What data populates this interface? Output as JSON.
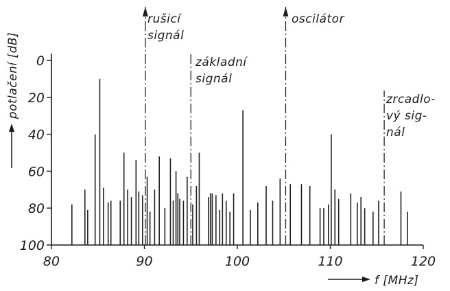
{
  "chart_data": {
    "type": "bar",
    "ylabel": "potlačení [dB]",
    "xlabel": "f [MHz]",
    "xlim": [
      80,
      120
    ],
    "ylim": [
      0,
      100
    ],
    "y_inverted": true,
    "x_ticks": [
      "80",
      "90",
      "100",
      "110",
      "120"
    ],
    "y_ticks": [
      "0",
      "20",
      "40",
      "60",
      "80",
      "100"
    ],
    "annotations": [
      {
        "x": 90.1,
        "lines": [
          "rušicí",
          "signál"
        ],
        "arrow": true
      },
      {
        "x": 95.0,
        "lines": [
          "základní",
          "signál"
        ],
        "arrow": false
      },
      {
        "x": 105.2,
        "lines": [
          "oscilátor"
        ],
        "arrow": true
      },
      {
        "x": 115.8,
        "lines": [
          "zrcadlo-",
          "vý sig-",
          "nál"
        ],
        "arrow": false
      }
    ],
    "series": [
      {
        "values": [
          [
            82.2,
            78
          ],
          [
            83.6,
            70
          ],
          [
            83.9,
            81
          ],
          [
            84.7,
            40
          ],
          [
            85.2,
            10
          ],
          [
            85.6,
            69
          ],
          [
            86.1,
            77
          ],
          [
            86.4,
            76
          ],
          [
            87.4,
            76
          ],
          [
            87.8,
            50
          ],
          [
            88.2,
            70
          ],
          [
            88.6,
            74
          ],
          [
            89.1,
            54
          ],
          [
            89.4,
            71
          ],
          [
            89.8,
            73
          ],
          [
            90.3,
            63
          ],
          [
            90.6,
            82
          ],
          [
            91.1,
            70
          ],
          [
            91.6,
            52
          ],
          [
            92.2,
            80
          ],
          [
            92.8,
            53
          ],
          [
            93.1,
            76
          ],
          [
            93.4,
            60
          ],
          [
            93.6,
            72
          ],
          [
            93.8,
            75
          ],
          [
            94.2,
            76
          ],
          [
            94.6,
            63
          ],
          [
            95.2,
            78
          ],
          [
            95.6,
            68
          ],
          [
            95.9,
            50
          ],
          [
            96.9,
            74
          ],
          [
            97.1,
            72
          ],
          [
            97.3,
            72
          ],
          [
            97.7,
            73
          ],
          [
            98.1,
            81
          ],
          [
            98.4,
            72
          ],
          [
            98.8,
            76
          ],
          [
            99.2,
            82
          ],
          [
            99.6,
            72
          ],
          [
            100.6,
            27
          ],
          [
            101.4,
            81
          ],
          [
            102.2,
            77
          ],
          [
            103.1,
            68
          ],
          [
            103.8,
            76
          ],
          [
            104.6,
            64
          ],
          [
            105.7,
            67
          ],
          [
            106.9,
            67
          ],
          [
            107.8,
            68
          ],
          [
            108.9,
            80
          ],
          [
            109.3,
            80
          ],
          [
            109.8,
            78
          ],
          [
            110.1,
            40
          ],
          [
            110.5,
            70
          ],
          [
            110.9,
            75
          ],
          [
            112.2,
            72
          ],
          [
            112.9,
            77
          ],
          [
            113.3,
            74
          ],
          [
            113.7,
            80
          ],
          [
            114.6,
            82
          ],
          [
            115.2,
            76
          ],
          [
            117.6,
            71
          ],
          [
            118.3,
            82
          ]
        ]
      }
    ]
  }
}
